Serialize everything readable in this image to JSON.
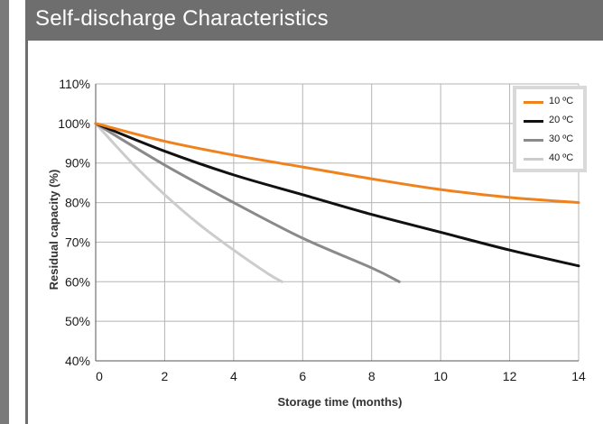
{
  "header": {
    "title": "Self-discharge Characteristics"
  },
  "chart_data": {
    "type": "line",
    "xlabel": "Storage time (months)",
    "ylabel": "Residual capacity (%)",
    "xlim": [
      0,
      14
    ],
    "ylim": [
      40,
      110
    ],
    "x_ticks": [
      0,
      2,
      4,
      6,
      8,
      10,
      12,
      14
    ],
    "y_ticks": [
      40,
      50,
      60,
      70,
      80,
      90,
      100,
      110
    ],
    "y_tick_labels": [
      "40%",
      "50%",
      "60%",
      "70%",
      "80%",
      "90%",
      "100%",
      "110%"
    ],
    "grid": true,
    "legend_position": "top-right",
    "series": [
      {
        "name": "10 ºC",
        "color": "#f0821e",
        "points": [
          [
            0,
            100
          ],
          [
            2,
            95.5
          ],
          [
            4,
            92
          ],
          [
            6,
            89
          ],
          [
            8,
            86
          ],
          [
            10,
            83.3
          ],
          [
            12,
            81.3
          ],
          [
            14,
            80
          ]
        ]
      },
      {
        "name": "20 ºC",
        "color": "#111111",
        "points": [
          [
            0,
            100
          ],
          [
            2,
            93
          ],
          [
            4,
            87
          ],
          [
            6,
            82
          ],
          [
            8,
            77
          ],
          [
            10,
            72.5
          ],
          [
            12,
            68
          ],
          [
            14,
            64
          ]
        ]
      },
      {
        "name": "30 ºC",
        "color": "#8a8a8a",
        "points": [
          [
            0,
            100
          ],
          [
            2,
            89.5
          ],
          [
            4,
            80
          ],
          [
            6,
            71
          ],
          [
            8,
            63.5
          ],
          [
            8.8,
            60
          ]
        ]
      },
      {
        "name": "40 ºC",
        "color": "#cccccc",
        "points": [
          [
            0,
            100
          ],
          [
            1,
            90.5
          ],
          [
            2,
            82
          ],
          [
            3,
            74.5
          ],
          [
            4,
            68
          ],
          [
            5,
            62
          ],
          [
            5.4,
            60
          ]
        ]
      }
    ]
  }
}
